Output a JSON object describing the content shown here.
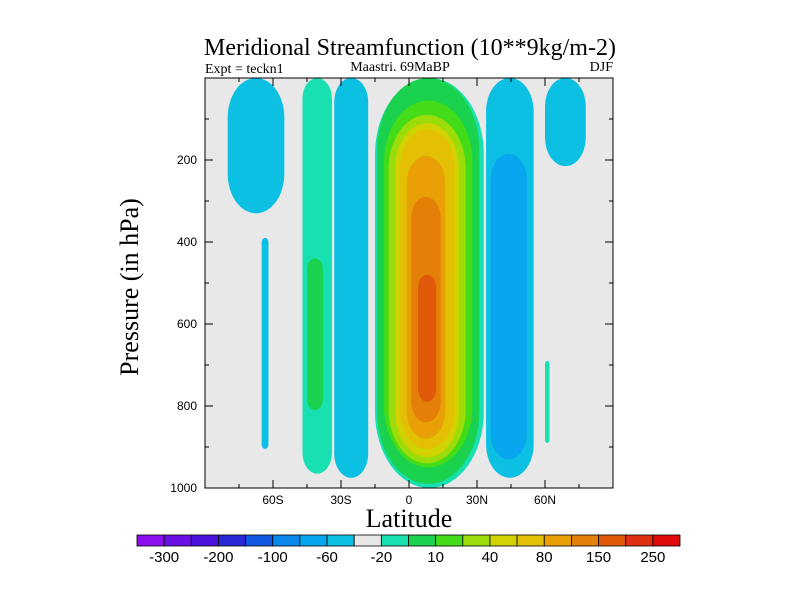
{
  "chart_data": {
    "type": "contour",
    "title": "Meridional Streamfunction (10**9kg/m-2)",
    "subtitle_left": "Expt = teckn1",
    "subtitle_center": "Maastri.  69MaBP",
    "subtitle_right": "DJF",
    "xlabel": "Latitude",
    "ylabel": "Pressure (in hPa)",
    "xlim": [
      -90,
      90
    ],
    "ylim": [
      0,
      1000
    ],
    "x_ticks": [
      {
        "value": -60,
        "label": "60S"
      },
      {
        "value": -30,
        "label": "30S"
      },
      {
        "value": 0,
        "label": "0"
      },
      {
        "value": 30,
        "label": "30N"
      },
      {
        "value": 60,
        "label": "60N"
      }
    ],
    "y_ticks": [
      {
        "value": 200,
        "label": "200"
      },
      {
        "value": 400,
        "label": "400"
      },
      {
        "value": 600,
        "label": "600"
      },
      {
        "value": 800,
        "label": "800"
      },
      {
        "value": 1000,
        "label": "1000"
      }
    ],
    "colorbar": {
      "colors": [
        "#8c0ff0",
        "#6a10e6",
        "#4a12dc",
        "#2a28d6",
        "#1258e2",
        "#0a88ec",
        "#08a6ee",
        "#0cc0e4",
        "#e8e8e8",
        "#18e0b0",
        "#1ad24e",
        "#44dc18",
        "#9cdc0a",
        "#d0d202",
        "#e4c004",
        "#e8a006",
        "#e48008",
        "#e05a0a",
        "#e03012",
        "#e00a0a"
      ],
      "labels": [
        {
          "after_box": 1,
          "text": "-300"
        },
        {
          "after_box": 3,
          "text": "-200"
        },
        {
          "after_box": 5,
          "text": "-100"
        },
        {
          "after_box": 7,
          "text": "-60"
        },
        {
          "after_box": 9,
          "text": "-20"
        },
        {
          "after_box": 11,
          "text": "10"
        },
        {
          "after_box": 13,
          "text": "40"
        },
        {
          "after_box": 15,
          "text": "80"
        },
        {
          "after_box": 17,
          "text": "150"
        },
        {
          "after_box": 19,
          "text": "250"
        }
      ]
    },
    "regions": [
      {
        "name": "nh-teal-column",
        "color": "#18e0b0",
        "lat_range": [
          -47,
          -34
        ],
        "p_range": [
          0,
          965
        ]
      },
      {
        "name": "nh-cyan-west",
        "color": "#0cc0e4",
        "lat_range": [
          -80,
          -55
        ],
        "p_range": [
          0,
          330
        ]
      },
      {
        "name": "sh-strip-left",
        "color": "#0cc0e4",
        "lat_range": [
          -65,
          -62
        ],
        "p_range": [
          390,
          905
        ]
      },
      {
        "name": "sh-green-center",
        "color": "#1ad24e",
        "lat_range": [
          -45,
          -38
        ],
        "p_range": [
          440,
          810
        ]
      },
      {
        "name": "cyan-upper-mid",
        "color": "#0cc0e4",
        "lat_range": [
          -33,
          -18
        ],
        "p_range": [
          0,
          975
        ]
      },
      {
        "name": "main-cell-outer",
        "color": "#18e0b0",
        "lat_range": [
          -15,
          33
        ],
        "p_range": [
          0,
          1000
        ]
      },
      {
        "name": "main-cell-10",
        "color": "#1ad24e",
        "lat_range": [
          -14,
          31
        ],
        "p_range": [
          0,
          990
        ]
      },
      {
        "name": "main-cell-40",
        "color": "#44dc18",
        "lat_range": [
          -11,
          28
        ],
        "p_range": [
          55,
          950
        ]
      },
      {
        "name": "main-cell-80",
        "color": "#9cdc0a",
        "lat_range": [
          -9,
          25
        ],
        "p_range": [
          90,
          940
        ]
      },
      {
        "name": "main-cell-100",
        "color": "#d0d202",
        "lat_range": [
          -6,
          22
        ],
        "p_range": [
          110,
          925
        ]
      },
      {
        "name": "main-cell-125",
        "color": "#e4c004",
        "lat_range": [
          -4,
          20
        ],
        "p_range": [
          125,
          905
        ]
      },
      {
        "name": "main-cell-150",
        "color": "#e8a006",
        "lat_range": [
          -1,
          16
        ],
        "p_range": [
          190,
          880
        ]
      },
      {
        "name": "main-cell-200",
        "color": "#e48008",
        "lat_range": [
          1,
          14
        ],
        "p_range": [
          290,
          840
        ]
      },
      {
        "name": "main-cell-250",
        "color": "#e05a0a",
        "lat_range": [
          4,
          12
        ],
        "p_range": [
          480,
          790
        ]
      },
      {
        "name": "nh-neg-cyan",
        "color": "#0cc0e4",
        "lat_range": [
          34,
          55
        ],
        "p_range": [
          0,
          975
        ]
      },
      {
        "name": "nh-neg-blue",
        "color": "#08a6ee",
        "lat_range": [
          36,
          52
        ],
        "p_range": [
          185,
          930
        ]
      },
      {
        "name": "nh-right-cyan",
        "color": "#0cc0e4",
        "lat_range": [
          60,
          78
        ],
        "p_range": [
          0,
          215
        ]
      },
      {
        "name": "nh-right-strip",
        "color": "#18e0b0",
        "lat_range": [
          60,
          62
        ],
        "p_range": [
          690,
          890
        ]
      }
    ]
  }
}
